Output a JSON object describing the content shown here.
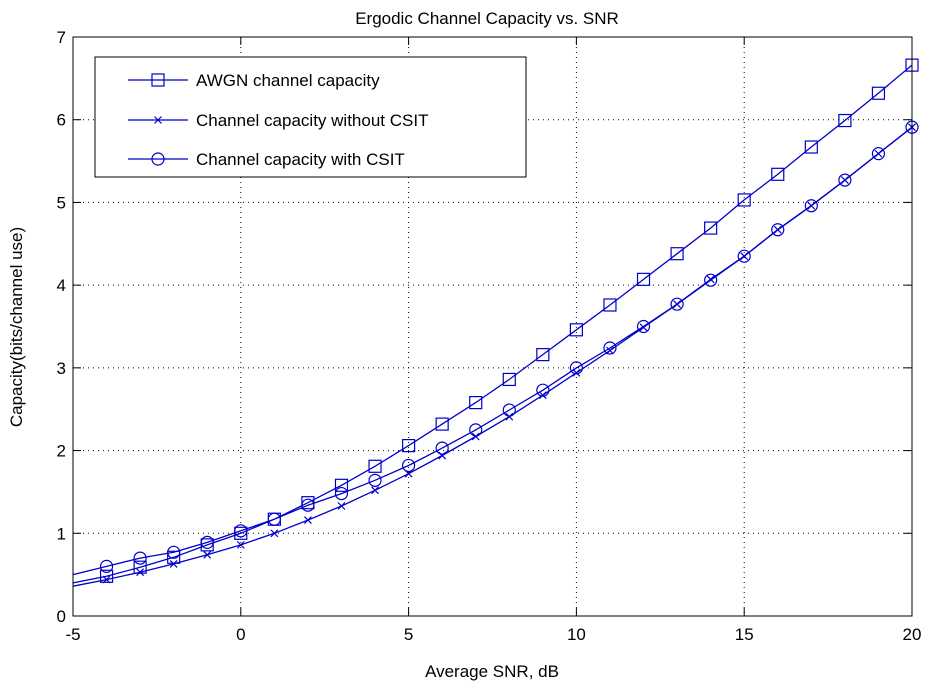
{
  "chart_data": {
    "type": "line",
    "title": "Ergodic Channel Capacity vs. SNR",
    "xlabel": "Average SNR, dB",
    "ylabel": "Capacity(bits/channel use)",
    "xlim": [
      -5,
      20
    ],
    "ylim": [
      0,
      7
    ],
    "xticks": [
      "-5",
      "0",
      "5",
      "10",
      "15",
      "20"
    ],
    "yticks": [
      "0",
      "1",
      "2",
      "3",
      "4",
      "5",
      "6",
      "7"
    ],
    "grid": true,
    "legend_position": "top-left",
    "color": "#0000cc",
    "x": [
      -5,
      -4,
      -3,
      -2,
      -1,
      0,
      1,
      2,
      3,
      4,
      5,
      6,
      7,
      8,
      9,
      10,
      11,
      12,
      13,
      14,
      15,
      16,
      17,
      18,
      19,
      20
    ],
    "series": [
      {
        "name": "AWGN channel capacity",
        "marker": "square",
        "values": [
          0.4,
          0.48,
          0.59,
          0.71,
          0.86,
          1.0,
          1.17,
          1.37,
          1.58,
          1.81,
          2.06,
          2.32,
          2.58,
          2.86,
          3.16,
          3.46,
          3.76,
          4.07,
          4.38,
          4.69,
          5.03,
          5.34,
          5.67,
          5.99,
          6.32,
          6.66
        ]
      },
      {
        "name": "Channel capacity without CSIT",
        "marker": "x",
        "values": [
          0.36,
          0.44,
          0.53,
          0.63,
          0.74,
          0.86,
          1.0,
          1.16,
          1.33,
          1.52,
          1.72,
          1.94,
          2.17,
          2.41,
          2.67,
          2.94,
          3.21,
          3.49,
          3.77,
          4.07,
          4.35,
          4.67,
          4.96,
          5.27,
          5.59,
          5.91
        ]
      },
      {
        "name": "Channel capacity with CSIT",
        "marker": "circle",
        "values": [
          0.5,
          0.6,
          0.7,
          0.77,
          0.89,
          1.03,
          1.17,
          1.34,
          1.48,
          1.64,
          1.82,
          2.03,
          2.25,
          2.49,
          2.73,
          3.0,
          3.24,
          3.5,
          3.77,
          4.06,
          4.35,
          4.67,
          4.96,
          5.27,
          5.59,
          5.91
        ]
      }
    ]
  }
}
